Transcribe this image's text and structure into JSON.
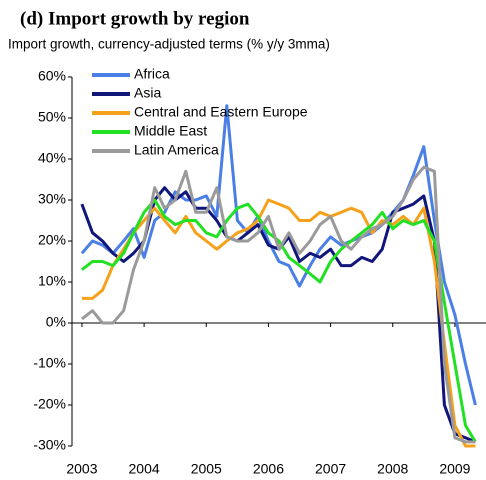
{
  "chart_data": {
    "type": "line",
    "title": "(d) Import growth by region",
    "subtitle": "Import growth, currency-adjusted terms (% y/y 3mma)",
    "x": [
      2003,
      2003.17,
      2003.33,
      2003.5,
      2003.67,
      2003.83,
      2004,
      2004.17,
      2004.33,
      2004.5,
      2004.67,
      2004.83,
      2005,
      2005.17,
      2005.33,
      2005.5,
      2005.67,
      2005.83,
      2006,
      2006.17,
      2006.33,
      2006.5,
      2006.67,
      2006.83,
      2007,
      2007.17,
      2007.33,
      2007.5,
      2007.67,
      2007.83,
      2008,
      2008.17,
      2008.33,
      2008.5,
      2008.67,
      2008.83,
      2009,
      2009.17,
      2009.33
    ],
    "series": [
      {
        "name": "Africa",
        "color": "#4a7fe8",
        "values": [
          17,
          20,
          19,
          17,
          20,
          23,
          16,
          25,
          27,
          32,
          30,
          30,
          31,
          26,
          53,
          25,
          22,
          26,
          20,
          15,
          14,
          9,
          14,
          18,
          21,
          19,
          20,
          21,
          22,
          24,
          27,
          30,
          36,
          43,
          25,
          10,
          2,
          -10,
          -20
        ]
      },
      {
        "name": "Asia",
        "color": "#10167a",
        "values": [
          29,
          22,
          20,
          17,
          15,
          17,
          20,
          30,
          33,
          30,
          32,
          28,
          28,
          25,
          21,
          20,
          22,
          24,
          19,
          18,
          21,
          15,
          17,
          16,
          18,
          14,
          14,
          16,
          15,
          18,
          27,
          28,
          29,
          31,
          20,
          -20,
          -27,
          -28,
          -29
        ]
      },
      {
        "name": "Central and Eastern Europe",
        "color": "#f7a11a",
        "values": [
          6,
          6,
          8,
          14,
          18,
          22,
          25,
          28,
          25,
          22,
          26,
          22,
          20,
          18,
          20,
          22,
          23,
          25,
          30,
          29,
          28,
          25,
          25,
          27,
          26,
          27,
          28,
          27,
          22,
          25,
          24,
          26,
          24,
          28,
          15,
          -5,
          -25,
          -30,
          -30
        ]
      },
      {
        "name": "Middle East",
        "color": "#22e022",
        "values": [
          13,
          15,
          15,
          14,
          17,
          22,
          27,
          30,
          26,
          24,
          25,
          25,
          22,
          21,
          25,
          28,
          29,
          26,
          22,
          20,
          16,
          14,
          12,
          10,
          15,
          18,
          20,
          22,
          24,
          27,
          23,
          25,
          24,
          25,
          20,
          5,
          -10,
          -25,
          -29
        ]
      },
      {
        "name": "Latin America",
        "color": "#9a9a9a",
        "values": [
          1,
          3,
          0,
          0,
          3,
          13,
          20,
          33,
          28,
          30,
          37,
          27,
          27,
          33,
          21,
          20,
          20,
          22,
          26,
          18,
          22,
          17,
          20,
          24,
          26,
          20,
          18,
          21,
          23,
          24,
          26,
          30,
          35,
          38,
          37,
          -10,
          -28,
          -29,
          -29
        ]
      }
    ],
    "xlim": [
      2002.84,
      2009.5
    ],
    "xticks": [
      2003,
      2004,
      2005,
      2006,
      2007,
      2008,
      2009
    ],
    "ylim": [
      -30,
      60
    ],
    "yticks": [
      {
        "value": -30,
        "label": "-30%"
      },
      {
        "value": -20,
        "label": "-20%"
      },
      {
        "value": -10,
        "label": "-10%"
      },
      {
        "value": 0,
        "label": "0%"
      },
      {
        "value": 10,
        "label": "10%"
      },
      {
        "value": 20,
        "label": "20%"
      },
      {
        "value": 30,
        "label": "30%"
      },
      {
        "value": 40,
        "label": "40%"
      },
      {
        "value": 50,
        "label": "50%"
      },
      {
        "value": 60,
        "label": "60%"
      }
    ]
  }
}
